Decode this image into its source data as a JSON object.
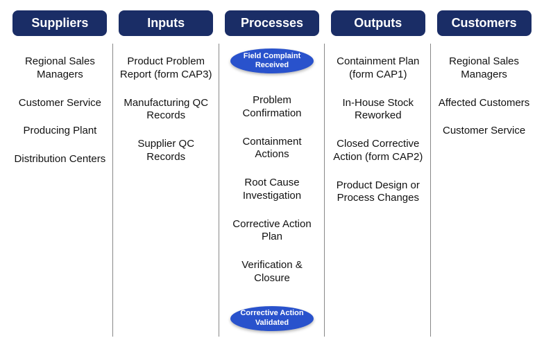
{
  "diagram": {
    "type": "sipoc",
    "background_color": "#ffffff",
    "header_bg": "#1a2d66",
    "header_text_color": "#ffffff",
    "pill_bg": "#2952cc",
    "pill_text_color": "#ffffff",
    "item_text_color": "#111111",
    "divider_color": "#888888",
    "header_fontsize": 18,
    "item_fontsize": 15,
    "pill_fontsize": 11
  },
  "suppliers": {
    "header": "Suppliers",
    "items": [
      "Regional Sales Managers",
      "Customer Service",
      "Producing Plant",
      "Distribution Centers"
    ]
  },
  "inputs": {
    "header": "Inputs",
    "items": [
      "Product Problem Report (form CAP3)",
      "Manufacturing QC Records",
      "Supplier QC Records"
    ]
  },
  "processes": {
    "header": "Processes",
    "start_pill": "Field Complaint Received",
    "items": [
      "Problem Confirmation",
      "Containment Actions",
      "Root Cause Investigation",
      "Corrective Action Plan",
      "Verification & Closure"
    ],
    "end_pill": "Corrective Action Validated"
  },
  "outputs": {
    "header": "Outputs",
    "items": [
      "Containment Plan (form CAP1)",
      "In-House Stock Reworked",
      "Closed Corrective Action (form CAP2)",
      "Product Design or Process Changes"
    ]
  },
  "customers": {
    "header": "Customers",
    "items": [
      "Regional Sales Managers",
      "Affected Customers",
      "Customer Service"
    ]
  }
}
